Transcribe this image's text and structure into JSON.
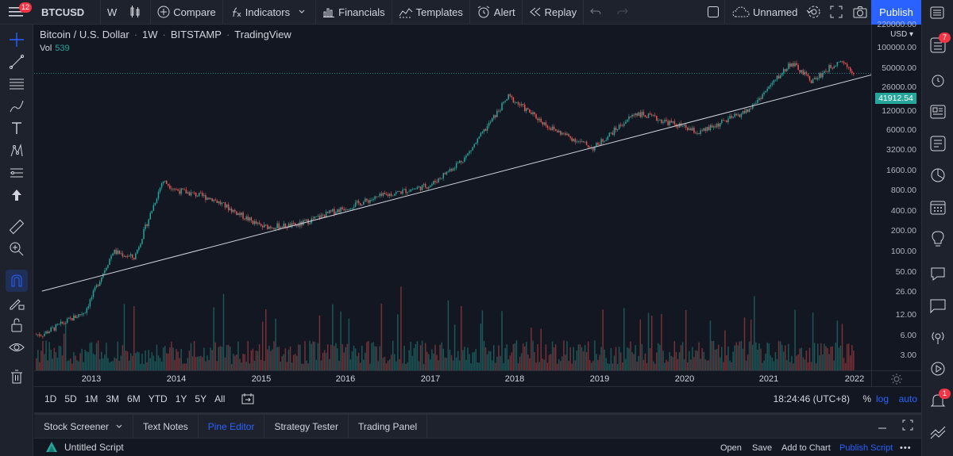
{
  "toolbar": {
    "menu_badge": "12",
    "symbol": "BTCUSD",
    "interval": "W",
    "compare": "Compare",
    "indicators": "Indicators",
    "financials": "Financials",
    "templates": "Templates",
    "alert": "Alert",
    "replay": "Replay",
    "layout_name": "Unnamed",
    "publish": "Publish"
  },
  "legend": {
    "pair": "Bitcoin / U.S. Dollar",
    "interval": "1W",
    "exchange": "BITSTAMP",
    "source": "TradingView",
    "vol_label": "Vol",
    "vol_value": "539"
  },
  "price_scale": {
    "currency": "USD",
    "current_price": "41912.54",
    "current_price_color": "#26a69a",
    "labels": [
      "220000.00",
      "100000.00",
      "50000.00",
      "26000.00",
      "12000.00",
      "6000.00",
      "3200.00",
      "1600.00",
      "800.00",
      "400.00",
      "200.00",
      "100.00",
      "50.00",
      "26.00",
      "12.00",
      "6.00",
      "3.00"
    ]
  },
  "time_scale": {
    "labels": [
      "2013",
      "2014",
      "2015",
      "2016",
      "2017",
      "2018",
      "2019",
      "2020",
      "2021",
      "2022"
    ]
  },
  "range_bar": {
    "ranges": [
      "1D",
      "5D",
      "1M",
      "3M",
      "6M",
      "YTD",
      "1Y",
      "5Y",
      "All"
    ],
    "clock": "18:24:46 (UTC+8)",
    "percent": "%",
    "log": "log",
    "auto": "auto"
  },
  "bottom_tabs": {
    "tabs": [
      "Stock Screener",
      "Text Notes",
      "Pine Editor",
      "Strategy Tester",
      "Trading Panel"
    ],
    "active": "Pine Editor"
  },
  "script_bar": {
    "name": "Untitled Script",
    "open": "Open",
    "save": "Save",
    "add_to_chart": "Add to Chart",
    "publish_script": "Publish Script"
  },
  "right_toolbar": {
    "alerts_badge": "7",
    "notifications_badge": "1"
  },
  "colors": {
    "up": "#26a69a",
    "down": "#ef5350",
    "accent": "#2962ff",
    "background": "#131722"
  },
  "chart_data": {
    "type": "candlestick",
    "title": "Bitcoin / U.S. Dollar · 1W · BITSTAMP",
    "y_scale": "log",
    "x": [
      "2012-06",
      "2012-12",
      "2013-04",
      "2013-07",
      "2013-11",
      "2014-01",
      "2014-06",
      "2015-01",
      "2015-06",
      "2015-11",
      "2016-06",
      "2017-01",
      "2017-06",
      "2017-12",
      "2018-06",
      "2018-12",
      "2019-06",
      "2019-12",
      "2020-03",
      "2020-10",
      "2021-04",
      "2021-07",
      "2021-11",
      "2022-01"
    ],
    "close": [
      6,
      13,
      100,
      80,
      1100,
      800,
      600,
      230,
      240,
      380,
      650,
      950,
      2500,
      19000,
      6500,
      3300,
      11000,
      7200,
      5500,
      12000,
      60000,
      32000,
      67000,
      41912.54
    ],
    "trendline": {
      "from": [
        "2012-06",
        26
      ],
      "to": [
        "2022-01",
        41912.54
      ]
    }
  }
}
